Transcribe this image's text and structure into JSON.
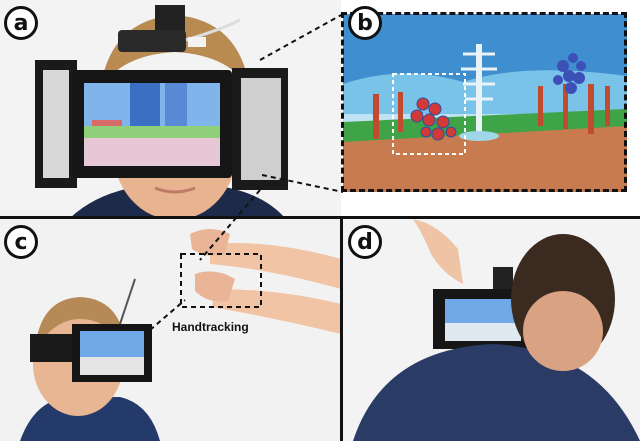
{
  "panels": [
    {
      "id": "a",
      "label": "a"
    },
    {
      "id": "b",
      "label": "b"
    },
    {
      "id": "c",
      "label": "c"
    },
    {
      "id": "d",
      "label": "d"
    }
  ],
  "annotations": {
    "handtracking": "Handtracking"
  },
  "colors": {
    "frame": "#111111",
    "sky": "#3f8fd0",
    "ground": "#c77b4f",
    "grass": "#3fa447",
    "hmd_screen": "#6fa9e8",
    "shirt": "#2a3b66"
  }
}
